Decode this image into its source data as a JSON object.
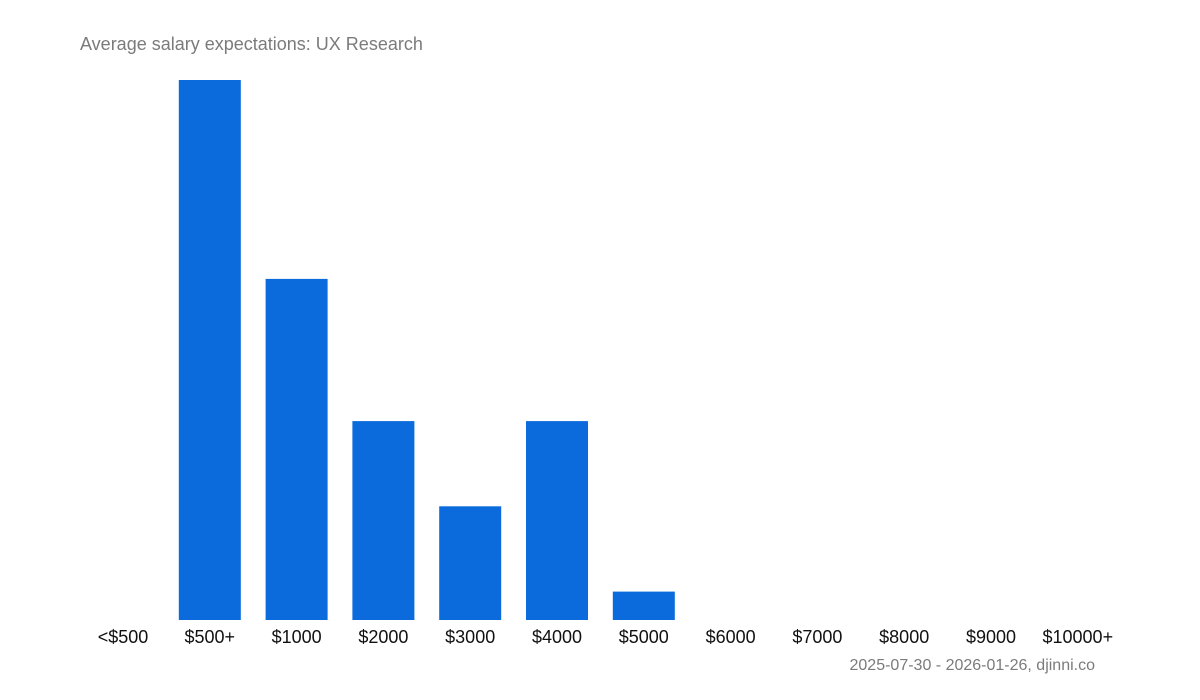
{
  "colors": {
    "bar": "#0b6bdc",
    "title": "#7b7b7b",
    "tick_label": "#111111",
    "footnote": "#7b7b7b",
    "background": "#ffffff"
  },
  "chart_data": {
    "type": "bar",
    "title": "Average salary expectations:  UX Research",
    "categories": [
      "<$500",
      "$500+",
      "$1000",
      "$2000",
      "$3000",
      "$4000",
      "$5000",
      "$6000",
      "$7000",
      "$8000",
      "$9000",
      "$10000+"
    ],
    "values": [
      0,
      19,
      12,
      7,
      4,
      7,
      1,
      0,
      0,
      0,
      0,
      0
    ],
    "xlabel": "",
    "ylabel": "",
    "ylim": [
      0,
      19
    ],
    "grid": false,
    "legend": "none"
  },
  "footer": {
    "text": "2025-07-30 - 2026-01-26, djinni.co"
  }
}
